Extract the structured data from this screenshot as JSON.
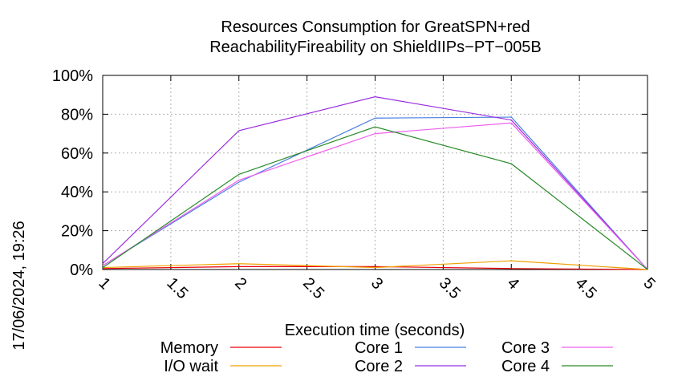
{
  "side_label": "17/06/2024, 19:26",
  "chart_data": {
    "type": "line",
    "title": [
      "Resources Consumption for GreatSPN+red",
      "ReachabilityFireability on ShieldIIPs−PT−005B"
    ],
    "xlabel": "Execution time (seconds)",
    "ylabel": "",
    "xlim": [
      1,
      5
    ],
    "ylim": [
      0,
      100
    ],
    "x_ticks": [
      1,
      1.5,
      2,
      2.5,
      3,
      3.5,
      4,
      4.5,
      5
    ],
    "x_tick_labels": [
      "1",
      "1.5",
      "2",
      "2.5",
      "3",
      "3.5",
      "4",
      "4.5",
      "5"
    ],
    "y_ticks": [
      0,
      20,
      40,
      60,
      80,
      100
    ],
    "y_tick_labels": [
      "0%",
      "20%",
      "40%",
      "60%",
      "80%",
      "100%"
    ],
    "grid": true,
    "legend_position": "bottom",
    "x": [
      1,
      2,
      3,
      4,
      5
    ],
    "series": [
      {
        "name": "Memory",
        "color": "#e8000b",
        "values": [
          0.5,
          1.5,
          1.5,
          0.5,
          0
        ]
      },
      {
        "name": "I/O wait",
        "color": "#f0a000",
        "values": [
          1,
          3,
          1,
          4.5,
          0
        ]
      },
      {
        "name": "Core 1",
        "color": "#4a7fe0",
        "values": [
          2,
          45,
          78,
          78.5,
          0
        ]
      },
      {
        "name": "Core 2",
        "color": "#9a2ee0",
        "values": [
          3,
          71.5,
          89,
          77,
          0
        ]
      },
      {
        "name": "Core 3",
        "color": "#f060f0",
        "values": [
          2,
          46,
          70,
          75.5,
          0
        ]
      },
      {
        "name": "Core 4",
        "color": "#2a8a2a",
        "values": [
          1,
          49,
          73.5,
          54.5,
          0
        ]
      }
    ]
  }
}
